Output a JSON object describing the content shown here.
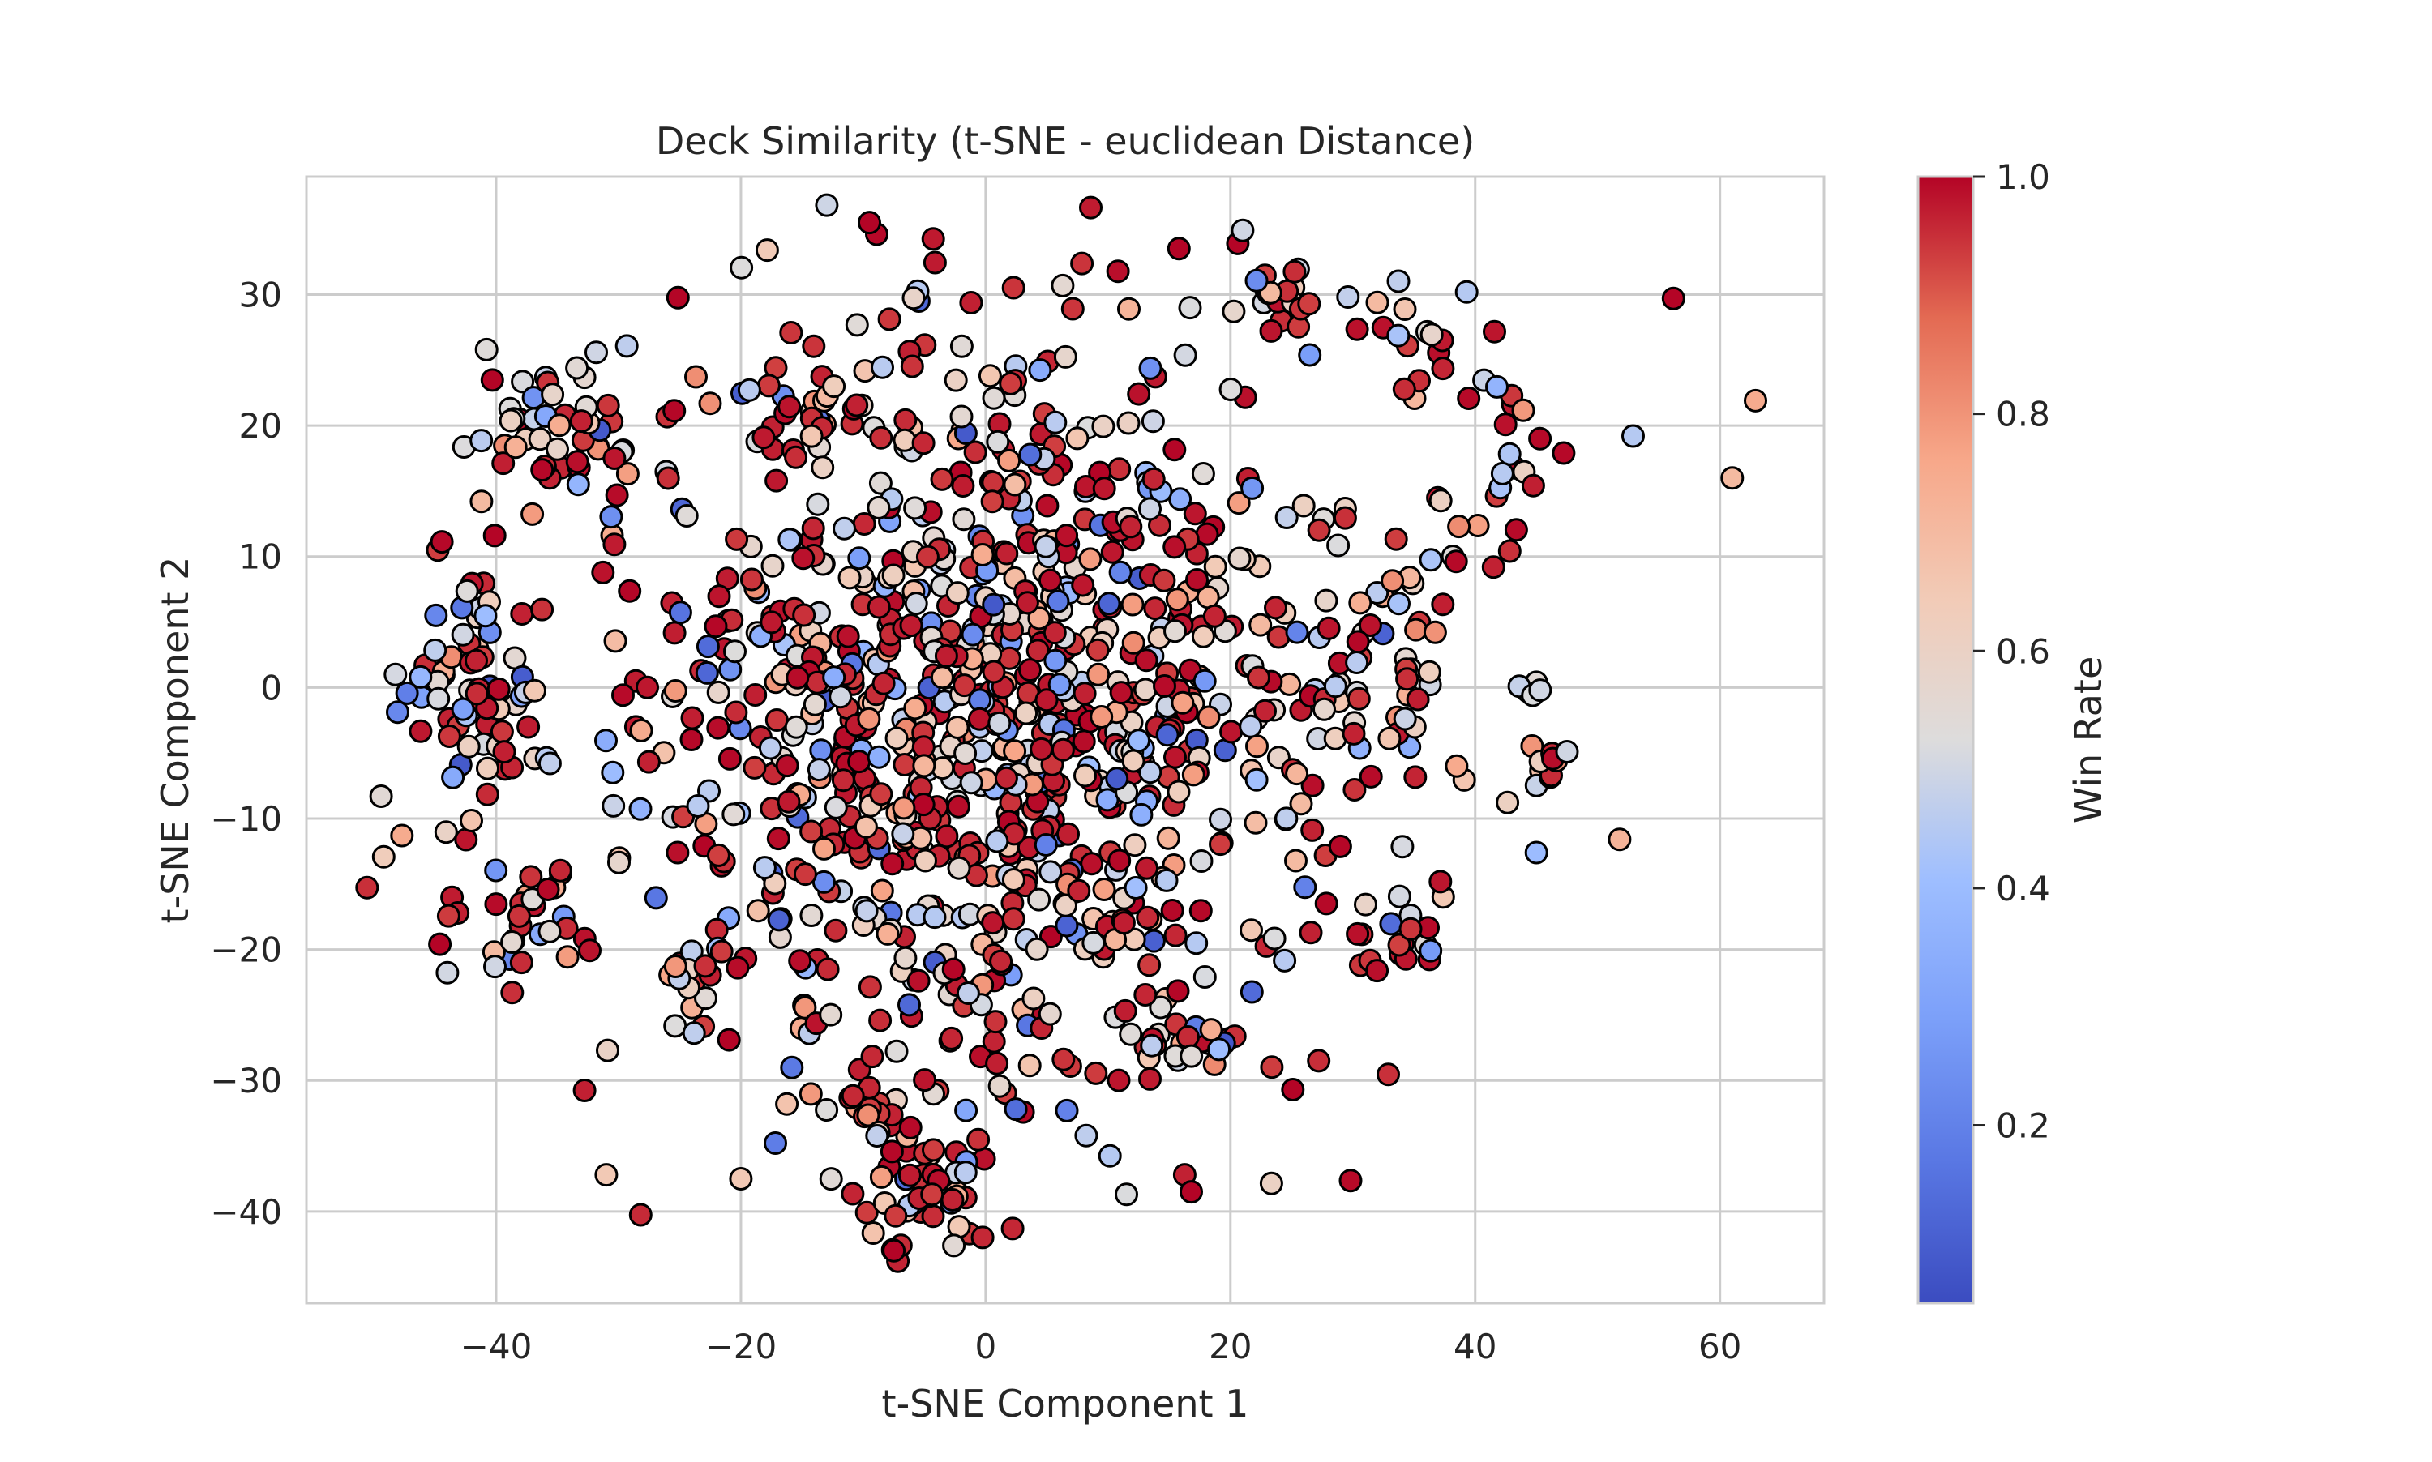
{
  "chart_data": {
    "type": "scatter",
    "title": "Deck Similarity (t-SNE - euclidean Distance)",
    "xlabel": "t-SNE Component 1",
    "ylabel": "t-SNE Component 2",
    "xlim": [
      -55.5,
      68.5
    ],
    "ylim": [
      -47,
      39
    ],
    "xticks": [
      -40,
      -20,
      0,
      20,
      40,
      60
    ],
    "yticks": [
      -40,
      -30,
      -20,
      -10,
      0,
      10,
      20,
      30
    ],
    "grid": true,
    "colormap": "coolwarm",
    "colorbar": {
      "label": "Win Rate",
      "range": [
        0.05,
        1.0
      ],
      "ticks": [
        0.2,
        0.4,
        0.6,
        0.8,
        1.0
      ],
      "tick_labels": [
        "0.2",
        "0.4",
        "0.6",
        "0.8",
        "1.0"
      ]
    },
    "colors": {
      "low": "#3b4cc0",
      "mid": "#dddddd",
      "high": "#b40426",
      "grid": "#cccccc",
      "marker_edge": "#000000"
    },
    "approximate_point_count": 1500,
    "points": [
      {
        "x": -9.5,
        "y": 35.5,
        "win_rate": 1.0
      },
      {
        "x": 56.2,
        "y": 29.7,
        "win_rate": 1.0
      },
      {
        "x": 62.9,
        "y": 21.9,
        "win_rate": 0.75
      },
      {
        "x": 61.0,
        "y": 16.0,
        "win_rate": 0.7
      },
      {
        "x": 52.9,
        "y": 19.2,
        "win_rate": 0.45
      },
      {
        "x": 51.8,
        "y": -11.6,
        "win_rate": 0.72
      },
      {
        "x": 45.0,
        "y": -12.6,
        "win_rate": 0.4
      },
      {
        "x": 47.5,
        "y": -4.9,
        "win_rate": 0.5
      },
      {
        "x": 25.1,
        "y": -30.7,
        "win_rate": 1.0
      },
      {
        "x": 16.8,
        "y": -38.5,
        "win_rate": 1.0
      },
      {
        "x": 11.5,
        "y": -38.7,
        "win_rate": 0.52
      },
      {
        "x": -7.5,
        "y": -43.0,
        "win_rate": 1.0
      },
      {
        "x": -2.6,
        "y": -42.6,
        "win_rate": 0.55
      },
      {
        "x": -31.0,
        "y": -37.2,
        "win_rate": 0.65
      },
      {
        "x": -20.0,
        "y": -37.5,
        "win_rate": 0.65
      },
      {
        "x": -49.4,
        "y": -8.3,
        "win_rate": 0.55
      },
      {
        "x": -47.7,
        "y": -11.3,
        "win_rate": 0.75
      },
      {
        "x": -44.6,
        "y": -19.6,
        "win_rate": 1.0
      },
      {
        "x": -40.1,
        "y": -21.3,
        "win_rate": 0.5
      },
      {
        "x": -41.2,
        "y": 14.2,
        "win_rate": 0.7
      },
      {
        "x": -33.4,
        "y": 24.4,
        "win_rate": 0.55
      },
      {
        "x": 20.6,
        "y": 33.9,
        "win_rate": 1.0
      },
      {
        "x": 21.0,
        "y": 34.9,
        "win_rate": 0.5
      },
      {
        "x": 39.3,
        "y": 30.2,
        "win_rate": 0.45
      },
      {
        "x": 44.3,
        "y": -0.3,
        "win_rate": 0.5
      },
      {
        "x": 45.0,
        "y": 0.4,
        "win_rate": 0.55
      },
      {
        "x": 43.6,
        "y": 0.1,
        "win_rate": 0.48
      },
      {
        "x": 44.7,
        "y": -0.6,
        "win_rate": 0.52
      },
      {
        "x": 45.3,
        "y": -0.2,
        "win_rate": 0.5
      },
      {
        "x": 16.7,
        "y": 29.0,
        "win_rate": 0.52
      },
      {
        "x": 11.7,
        "y": 28.9,
        "win_rate": 0.72
      },
      {
        "x": 32.0,
        "y": 29.4,
        "win_rate": 0.7
      }
    ]
  }
}
